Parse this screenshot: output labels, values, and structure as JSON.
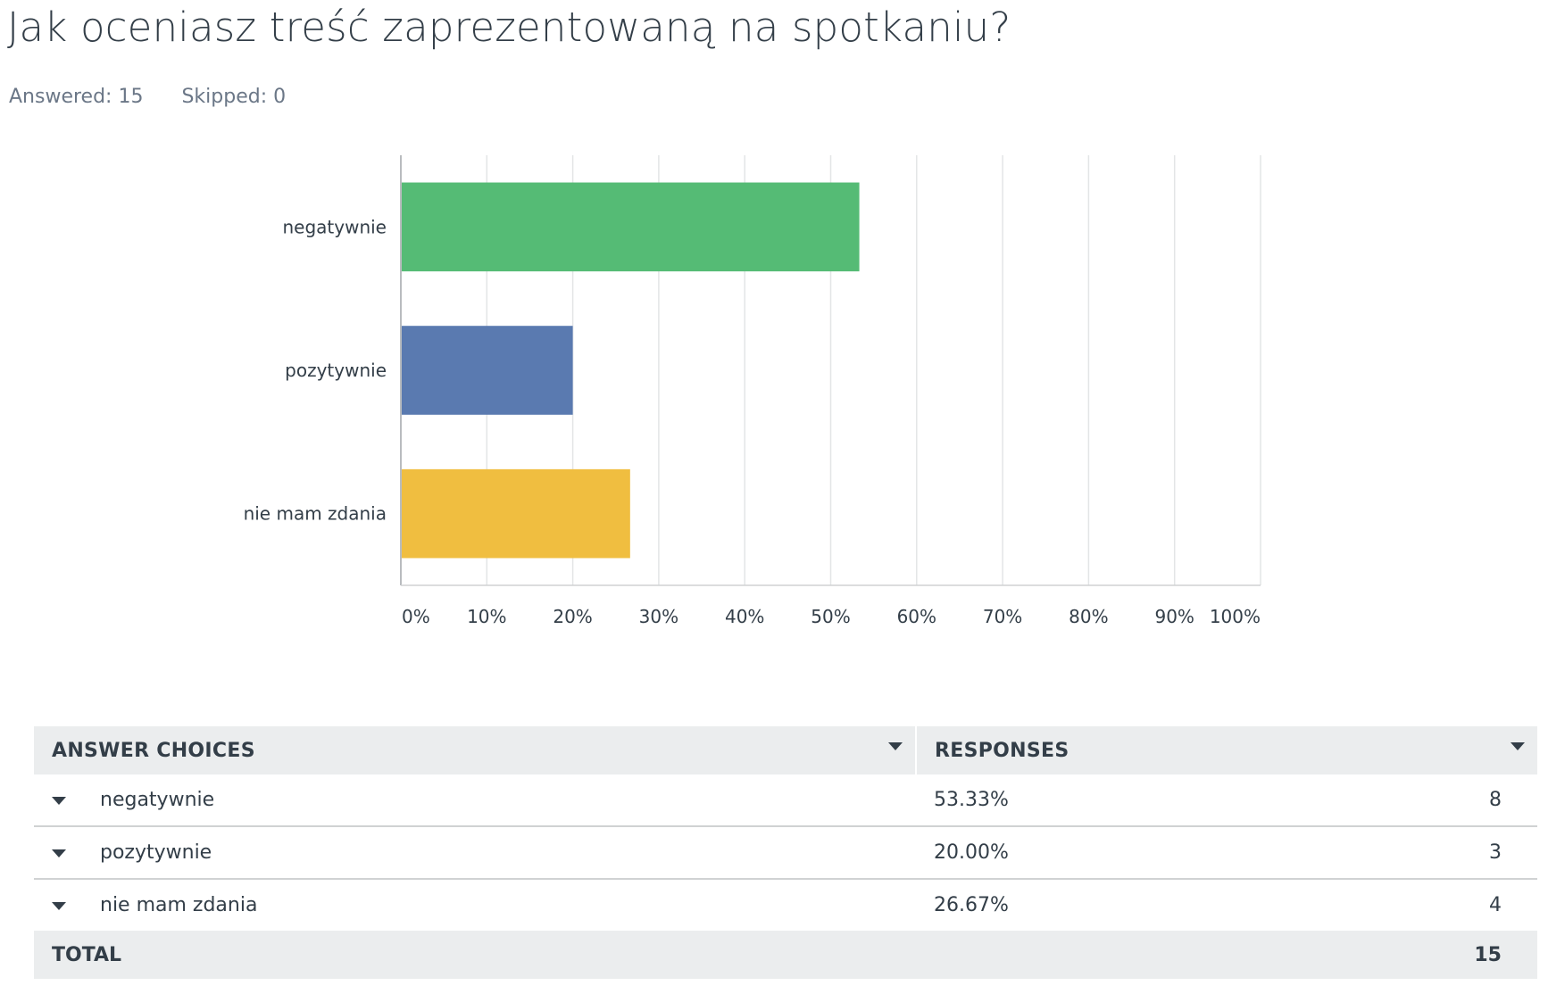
{
  "question": {
    "title": "Jak oceniasz treść zaprezentowaną na spotkaniu?",
    "answered": "Answered: 15",
    "skipped": "Skipped: 0"
  },
  "chart_data": {
    "type": "bar",
    "orientation": "horizontal",
    "categories": [
      "negatywnie",
      "pozytywnie",
      "nie mam zdania"
    ],
    "values": [
      53.33,
      20.0,
      26.67
    ],
    "colors": [
      "#55bb75",
      "#5a7ab0",
      "#f0be40"
    ],
    "xlim": [
      0,
      100
    ],
    "xticks": [
      0,
      10,
      20,
      30,
      40,
      50,
      60,
      70,
      80,
      90,
      100
    ],
    "xtick_labels": [
      "0%",
      "10%",
      "20%",
      "30%",
      "40%",
      "50%",
      "60%",
      "70%",
      "80%",
      "90%",
      "100%"
    ],
    "grid": true
  },
  "table": {
    "headers": {
      "choices": "ANSWER CHOICES",
      "responses": "RESPONSES"
    },
    "rows": [
      {
        "choice": "negatywnie",
        "percent": "53.33%",
        "count": "8"
      },
      {
        "choice": "pozytywnie",
        "percent": "20.00%",
        "count": "3"
      },
      {
        "choice": "nie mam zdania",
        "percent": "26.67%",
        "count": "4"
      }
    ],
    "total_label": "TOTAL",
    "total_count": "15"
  },
  "colors": {
    "text": "#333e48",
    "muted": "#6b7787",
    "header_bg": "#ebedee"
  }
}
